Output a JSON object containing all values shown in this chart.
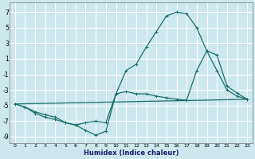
{
  "xlabel": "Humidex (Indice chaleur)",
  "xlim": [
    -0.5,
    23.5
  ],
  "ylim": [
    -9.8,
    8.2
  ],
  "yticks": [
    -9,
    -7,
    -5,
    -3,
    -1,
    1,
    3,
    5,
    7
  ],
  "xticks": [
    0,
    1,
    2,
    3,
    4,
    5,
    6,
    7,
    8,
    9,
    10,
    11,
    12,
    13,
    14,
    15,
    16,
    17,
    18,
    19,
    20,
    21,
    22,
    23
  ],
  "bg_color": "#cce8ec",
  "line_color": "#1a6e6a",
  "grid_color": "#ffffff",
  "curve1_x": [
    0,
    1,
    2,
    3,
    4,
    5,
    6,
    7,
    8,
    9,
    10,
    11,
    12,
    13,
    14,
    15,
    16,
    17,
    18,
    19,
    20,
    21,
    22,
    23
  ],
  "curve1_y": [
    -4.8,
    -5.2,
    -5.8,
    -6.2,
    -6.5,
    -7.2,
    -7.5,
    -7.2,
    -7.0,
    -7.2,
    -3.5,
    -3.2,
    -3.5,
    -3.5,
    -3.8,
    -4.0,
    -4.2,
    -4.3,
    -0.5,
    2.0,
    1.5,
    -2.5,
    -3.4,
    -4.2
  ],
  "curve2_x": [
    0,
    1,
    2,
    3,
    4,
    5,
    6,
    7,
    8,
    9,
    10,
    11,
    12,
    13,
    14,
    15,
    16,
    17,
    18,
    19,
    20,
    21,
    22,
    23
  ],
  "curve2_y": [
    -4.8,
    -5.2,
    -6.0,
    -6.5,
    -6.8,
    -7.2,
    -7.5,
    -8.2,
    -8.8,
    -8.3,
    -3.5,
    -0.5,
    0.3,
    2.5,
    4.5,
    6.5,
    7.0,
    6.8,
    5.0,
    2.0,
    -0.5,
    -3.0,
    -3.8,
    -4.2
  ],
  "line3_x": [
    0,
    23
  ],
  "line3_y": [
    -4.8,
    -4.2
  ]
}
